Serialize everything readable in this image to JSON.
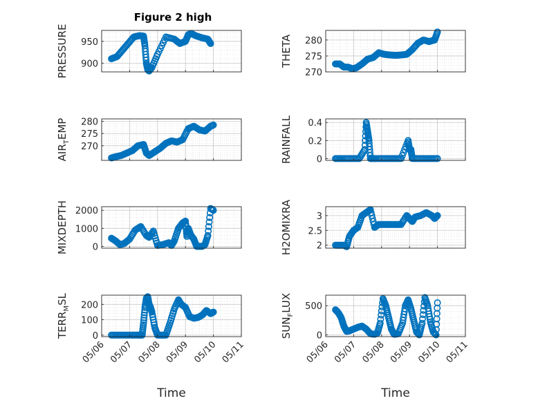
{
  "figure": {
    "title": "Figure 2 high",
    "marker_color": "#0072bd",
    "axes_color": "#262626",
    "grid_color": "#d9d9d9"
  },
  "chart_data": [
    {
      "type": "scatter",
      "ylabel": "PRESSURE",
      "ylabel_sub": "",
      "ylabel_tail": "",
      "xlabel": "",
      "title": "Figure 2 high",
      "xlim": [
        0,
        5
      ],
      "ylim": [
        880,
        975
      ],
      "yticks": [
        900,
        950
      ],
      "ytick_labels": [
        "900",
        "950"
      ],
      "xticks": [
        0,
        1,
        2,
        3,
        4,
        5
      ],
      "xtick_labels": [],
      "grid": true,
      "x": [
        0.35,
        0.55,
        0.75,
        0.95,
        1.15,
        1.35,
        1.5,
        1.55,
        1.6,
        1.65,
        1.7,
        1.8,
        2.0,
        2.3,
        2.6,
        2.8,
        3.0,
        3.1,
        3.2,
        3.4,
        3.6,
        3.8,
        3.9
      ],
      "y": [
        910,
        915,
        930,
        945,
        960,
        963,
        962,
        940,
        900,
        885,
        882,
        890,
        920,
        960,
        955,
        945,
        950,
        965,
        968,
        962,
        958,
        955,
        945
      ]
    },
    {
      "type": "scatter",
      "ylabel": "THETA",
      "ylabel_sub": "",
      "ylabel_tail": "",
      "xlabel": "",
      "title": "",
      "xlim": [
        0,
        5
      ],
      "ylim": [
        270,
        283
      ],
      "yticks": [
        270,
        275,
        280
      ],
      "ytick_labels": [
        "270",
        "275",
        "280"
      ],
      "xticks": [
        0,
        1,
        2,
        3,
        4,
        5
      ],
      "xtick_labels": [],
      "grid": true,
      "x": [
        0.35,
        0.5,
        0.65,
        0.8,
        0.95,
        1.1,
        1.3,
        1.5,
        1.7,
        1.9,
        2.1,
        2.3,
        2.5,
        2.7,
        2.9,
        3.1,
        3.3,
        3.5,
        3.7,
        3.9,
        4.0
      ],
      "y": [
        272.5,
        272.5,
        271.5,
        271.5,
        271,
        271.3,
        272.5,
        274,
        274.5,
        276,
        275.5,
        275.3,
        275.2,
        275.3,
        275.5,
        277,
        279,
        280,
        279.5,
        280,
        282.5
      ]
    },
    {
      "type": "scatter",
      "ylabel": "AIR",
      "ylabel_sub": "T",
      "ylabel_tail": "EMP",
      "xlabel": "",
      "title": "",
      "xlim": [
        0,
        5
      ],
      "ylim": [
        264,
        281
      ],
      "yticks": [
        270,
        275,
        280
      ],
      "ytick_labels": [
        "270",
        "275",
        "280"
      ],
      "xticks": [
        0,
        1,
        2,
        3,
        4,
        5
      ],
      "xtick_labels": [],
      "grid": true,
      "x": [
        0.35,
        0.5,
        0.7,
        0.9,
        1.1,
        1.3,
        1.5,
        1.6,
        1.7,
        1.9,
        2.1,
        2.3,
        2.5,
        2.7,
        2.9,
        3.1,
        3.3,
        3.5,
        3.7,
        3.9,
        4.0
      ],
      "y": [
        265,
        265.5,
        266,
        267,
        268,
        270,
        270.5,
        267,
        266,
        267.5,
        269,
        271,
        272,
        271.5,
        272.5,
        277,
        278,
        276.5,
        276,
        278,
        278.5
      ]
    },
    {
      "type": "scatter",
      "ylabel": "RAINFALL",
      "ylabel_sub": "",
      "ylabel_tail": "",
      "xlabel": "",
      "title": "",
      "xlim": [
        0,
        5
      ],
      "ylim": [
        -0.02,
        0.44
      ],
      "yticks": [
        0,
        0.2,
        0.4
      ],
      "ytick_labels": [
        "0",
        "0.2",
        "0.4"
      ],
      "xticks": [
        0,
        1,
        2,
        3,
        4,
        5
      ],
      "xtick_labels": [],
      "grid": true,
      "x": [
        0.35,
        0.6,
        0.9,
        1.2,
        1.4,
        1.45,
        1.5,
        1.55,
        1.6,
        1.8,
        2.1,
        2.4,
        2.7,
        2.95,
        3.0,
        3.05,
        3.1,
        3.4,
        3.7,
        4.0
      ],
      "y": [
        0,
        0,
        0,
        0,
        0.1,
        0.4,
        0.3,
        0.2,
        0,
        0,
        0,
        0,
        0,
        0.2,
        0.1,
        0.1,
        0,
        0,
        0,
        0
      ]
    },
    {
      "type": "scatter",
      "ylabel": "MIXDEPTH",
      "ylabel_sub": "",
      "ylabel_tail": "",
      "xlabel": "",
      "title": "",
      "xlim": [
        0,
        5
      ],
      "ylim": [
        -100,
        2200
      ],
      "yticks": [
        0,
        1000,
        2000
      ],
      "ytick_labels": [
        "0",
        "1000",
        "2000"
      ],
      "xticks": [
        0,
        1,
        2,
        3,
        4,
        5
      ],
      "xtick_labels": [],
      "grid": true,
      "x": [
        0.35,
        0.5,
        0.65,
        0.8,
        1.0,
        1.2,
        1.4,
        1.6,
        1.7,
        1.85,
        2.0,
        2.2,
        2.4,
        2.5,
        2.6,
        2.75,
        2.9,
        3.0,
        3.05,
        3.1,
        3.2,
        3.3,
        3.4,
        3.5,
        3.6,
        3.7,
        3.8,
        3.9,
        4.0
      ],
      "y": [
        450,
        300,
        100,
        150,
        400,
        900,
        1100,
        600,
        500,
        850,
        50,
        100,
        200,
        50,
        300,
        1000,
        1300,
        1400,
        550,
        1000,
        600,
        400,
        0,
        0,
        0,
        100,
        600,
        2100,
        2000
      ]
    },
    {
      "type": "scatter",
      "ylabel": "H2OMIXRA",
      "ylabel_sub": "",
      "ylabel_tail": "",
      "xlabel": "",
      "title": "",
      "xlim": [
        0,
        5
      ],
      "ylim": [
        1.9,
        3.3
      ],
      "yticks": [
        2,
        2.5,
        3
      ],
      "ytick_labels": [
        "2",
        "2.5",
        "3"
      ],
      "xticks": [
        0,
        1,
        2,
        3,
        4,
        5
      ],
      "xtick_labels": [],
      "grid": true,
      "x": [
        0.35,
        0.5,
        0.65,
        0.75,
        0.85,
        1.0,
        1.15,
        1.3,
        1.45,
        1.6,
        1.75,
        1.9,
        2.1,
        2.3,
        2.5,
        2.7,
        2.9,
        3.0,
        3.1,
        3.2,
        3.4,
        3.6,
        3.8,
        3.9,
        4.0
      ],
      "y": [
        2.0,
        2.0,
        2.0,
        1.95,
        2.3,
        2.5,
        2.6,
        3.0,
        3.1,
        3.2,
        2.6,
        2.7,
        2.7,
        2.7,
        2.7,
        2.7,
        3.0,
        2.9,
        2.8,
        2.95,
        3.0,
        3.1,
        3.0,
        2.9,
        3.0
      ]
    },
    {
      "type": "scatter",
      "ylabel": "TERR",
      "ylabel_sub": "M",
      "ylabel_tail": "SL",
      "xlabel": "Time",
      "title": "",
      "xlim": [
        0,
        5
      ],
      "ylim": [
        -10,
        260
      ],
      "yticks": [
        0,
        100,
        200
      ],
      "ytick_labels": [
        "0",
        "100",
        "200"
      ],
      "xticks": [
        0,
        1,
        2,
        3,
        4,
        5
      ],
      "xtick_labels": [
        "05/06",
        "05/07",
        "05/08",
        "05/09",
        "05/10",
        "05/11"
      ],
      "grid": true,
      "x": [
        0.35,
        0.6,
        0.85,
        1.1,
        1.3,
        1.45,
        1.5,
        1.55,
        1.6,
        1.65,
        1.7,
        1.75,
        1.8,
        1.9,
        2.0,
        2.15,
        2.3,
        2.45,
        2.6,
        2.75,
        2.85,
        3.0,
        3.15,
        3.3,
        3.45,
        3.6,
        3.75,
        3.9,
        4.0
      ],
      "y": [
        0,
        0,
        0,
        0,
        0,
        0,
        80,
        180,
        240,
        250,
        200,
        180,
        150,
        50,
        0,
        0,
        0,
        80,
        170,
        230,
        200,
        180,
        120,
        110,
        115,
        130,
        160,
        140,
        150
      ]
    },
    {
      "type": "scatter",
      "ylabel": "SUN",
      "ylabel_sub": "F",
      "ylabel_tail": "LUX",
      "xlabel": "Time",
      "title": "",
      "xlim": [
        0,
        5
      ],
      "ylim": [
        -30,
        680
      ],
      "yticks": [
        0,
        500
      ],
      "ytick_labels": [
        "0",
        "500"
      ],
      "xticks": [
        0,
        1,
        2,
        3,
        4,
        5
      ],
      "xtick_labels": [
        "05/06",
        "05/07",
        "05/08",
        "05/09",
        "05/10",
        "05/11"
      ],
      "grid": true,
      "x": [
        0.35,
        0.45,
        0.55,
        0.65,
        0.75,
        0.85,
        1.0,
        1.15,
        1.3,
        1.45,
        1.6,
        1.75,
        1.85,
        1.95,
        2.05,
        2.15,
        2.25,
        2.35,
        2.45,
        2.6,
        2.75,
        2.85,
        2.95,
        3.05,
        3.15,
        3.25,
        3.35,
        3.45,
        3.55,
        3.65,
        3.75,
        3.85,
        3.95,
        4.0
      ],
      "y": [
        430,
        380,
        300,
        150,
        60,
        70,
        100,
        130,
        150,
        100,
        20,
        10,
        30,
        200,
        620,
        500,
        300,
        100,
        10,
        20,
        200,
        500,
        600,
        450,
        250,
        50,
        0,
        200,
        640,
        500,
        220,
        50,
        0,
        550
      ]
    }
  ]
}
